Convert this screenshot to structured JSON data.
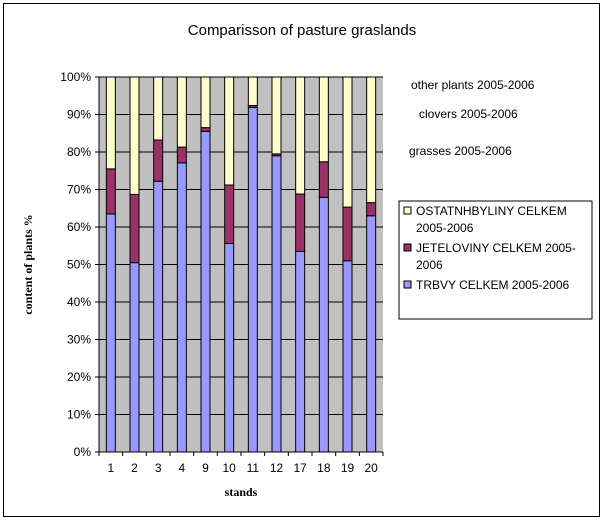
{
  "chart_data": {
    "type": "bar",
    "stacked": true,
    "title": "Comparisson of pasture graslands",
    "xlabel": "stands",
    "ylabel": "content of plants %",
    "ylim": [
      0,
      100
    ],
    "yticks": [
      "0%",
      "10%",
      "20%",
      "30%",
      "40%",
      "50%",
      "60%",
      "70%",
      "80%",
      "90%",
      "100%"
    ],
    "categories": [
      "1",
      "2",
      "3",
      "4",
      "9",
      "10",
      "11",
      "12",
      "17",
      "18",
      "19",
      "20"
    ],
    "series": [
      {
        "name": "TRBVY  CELKEM 2005-2006",
        "color": "#9999ff",
        "values": [
          63.5,
          50.5,
          72.2,
          77.1,
          85.5,
          55.6,
          91.9,
          79.0,
          53.5,
          67.9,
          51.0,
          63.0
        ]
      },
      {
        "name": "JETELOVINY  CELKEM 2005-2006",
        "color": "#993366",
        "values": [
          12.0,
          18.2,
          11.0,
          4.2,
          1.0,
          15.6,
          0.5,
          0.5,
          15.3,
          9.5,
          14.3,
          3.5
        ]
      },
      {
        "name": "OSTATNHBYLINY CELKEM 2005-2006",
        "color": "#ffffcc",
        "values": [
          24.5,
          31.3,
          16.8,
          18.7,
          13.5,
          28.8,
          7.6,
          20.5,
          31.2,
          22.6,
          34.7,
          33.5
        ]
      }
    ],
    "legend": {
      "placement": "right",
      "entries": [
        {
          "series": 2,
          "lines": [
            "OSTATNHBYLINY CELKEM",
            "2005-2006"
          ]
        },
        {
          "series": 1,
          "lines": [
            "JETELOVINY  CELKEM 2005-",
            "2006"
          ]
        },
        {
          "series": 0,
          "lines": [
            "TRBVY  CELKEM 2005-2006"
          ]
        }
      ]
    },
    "annotations": [
      "other plants 2005-2006",
      "clovers 2005-2006",
      "grasses 2005-2006"
    ],
    "plot_background": "#c0c0c0",
    "grid": true
  }
}
